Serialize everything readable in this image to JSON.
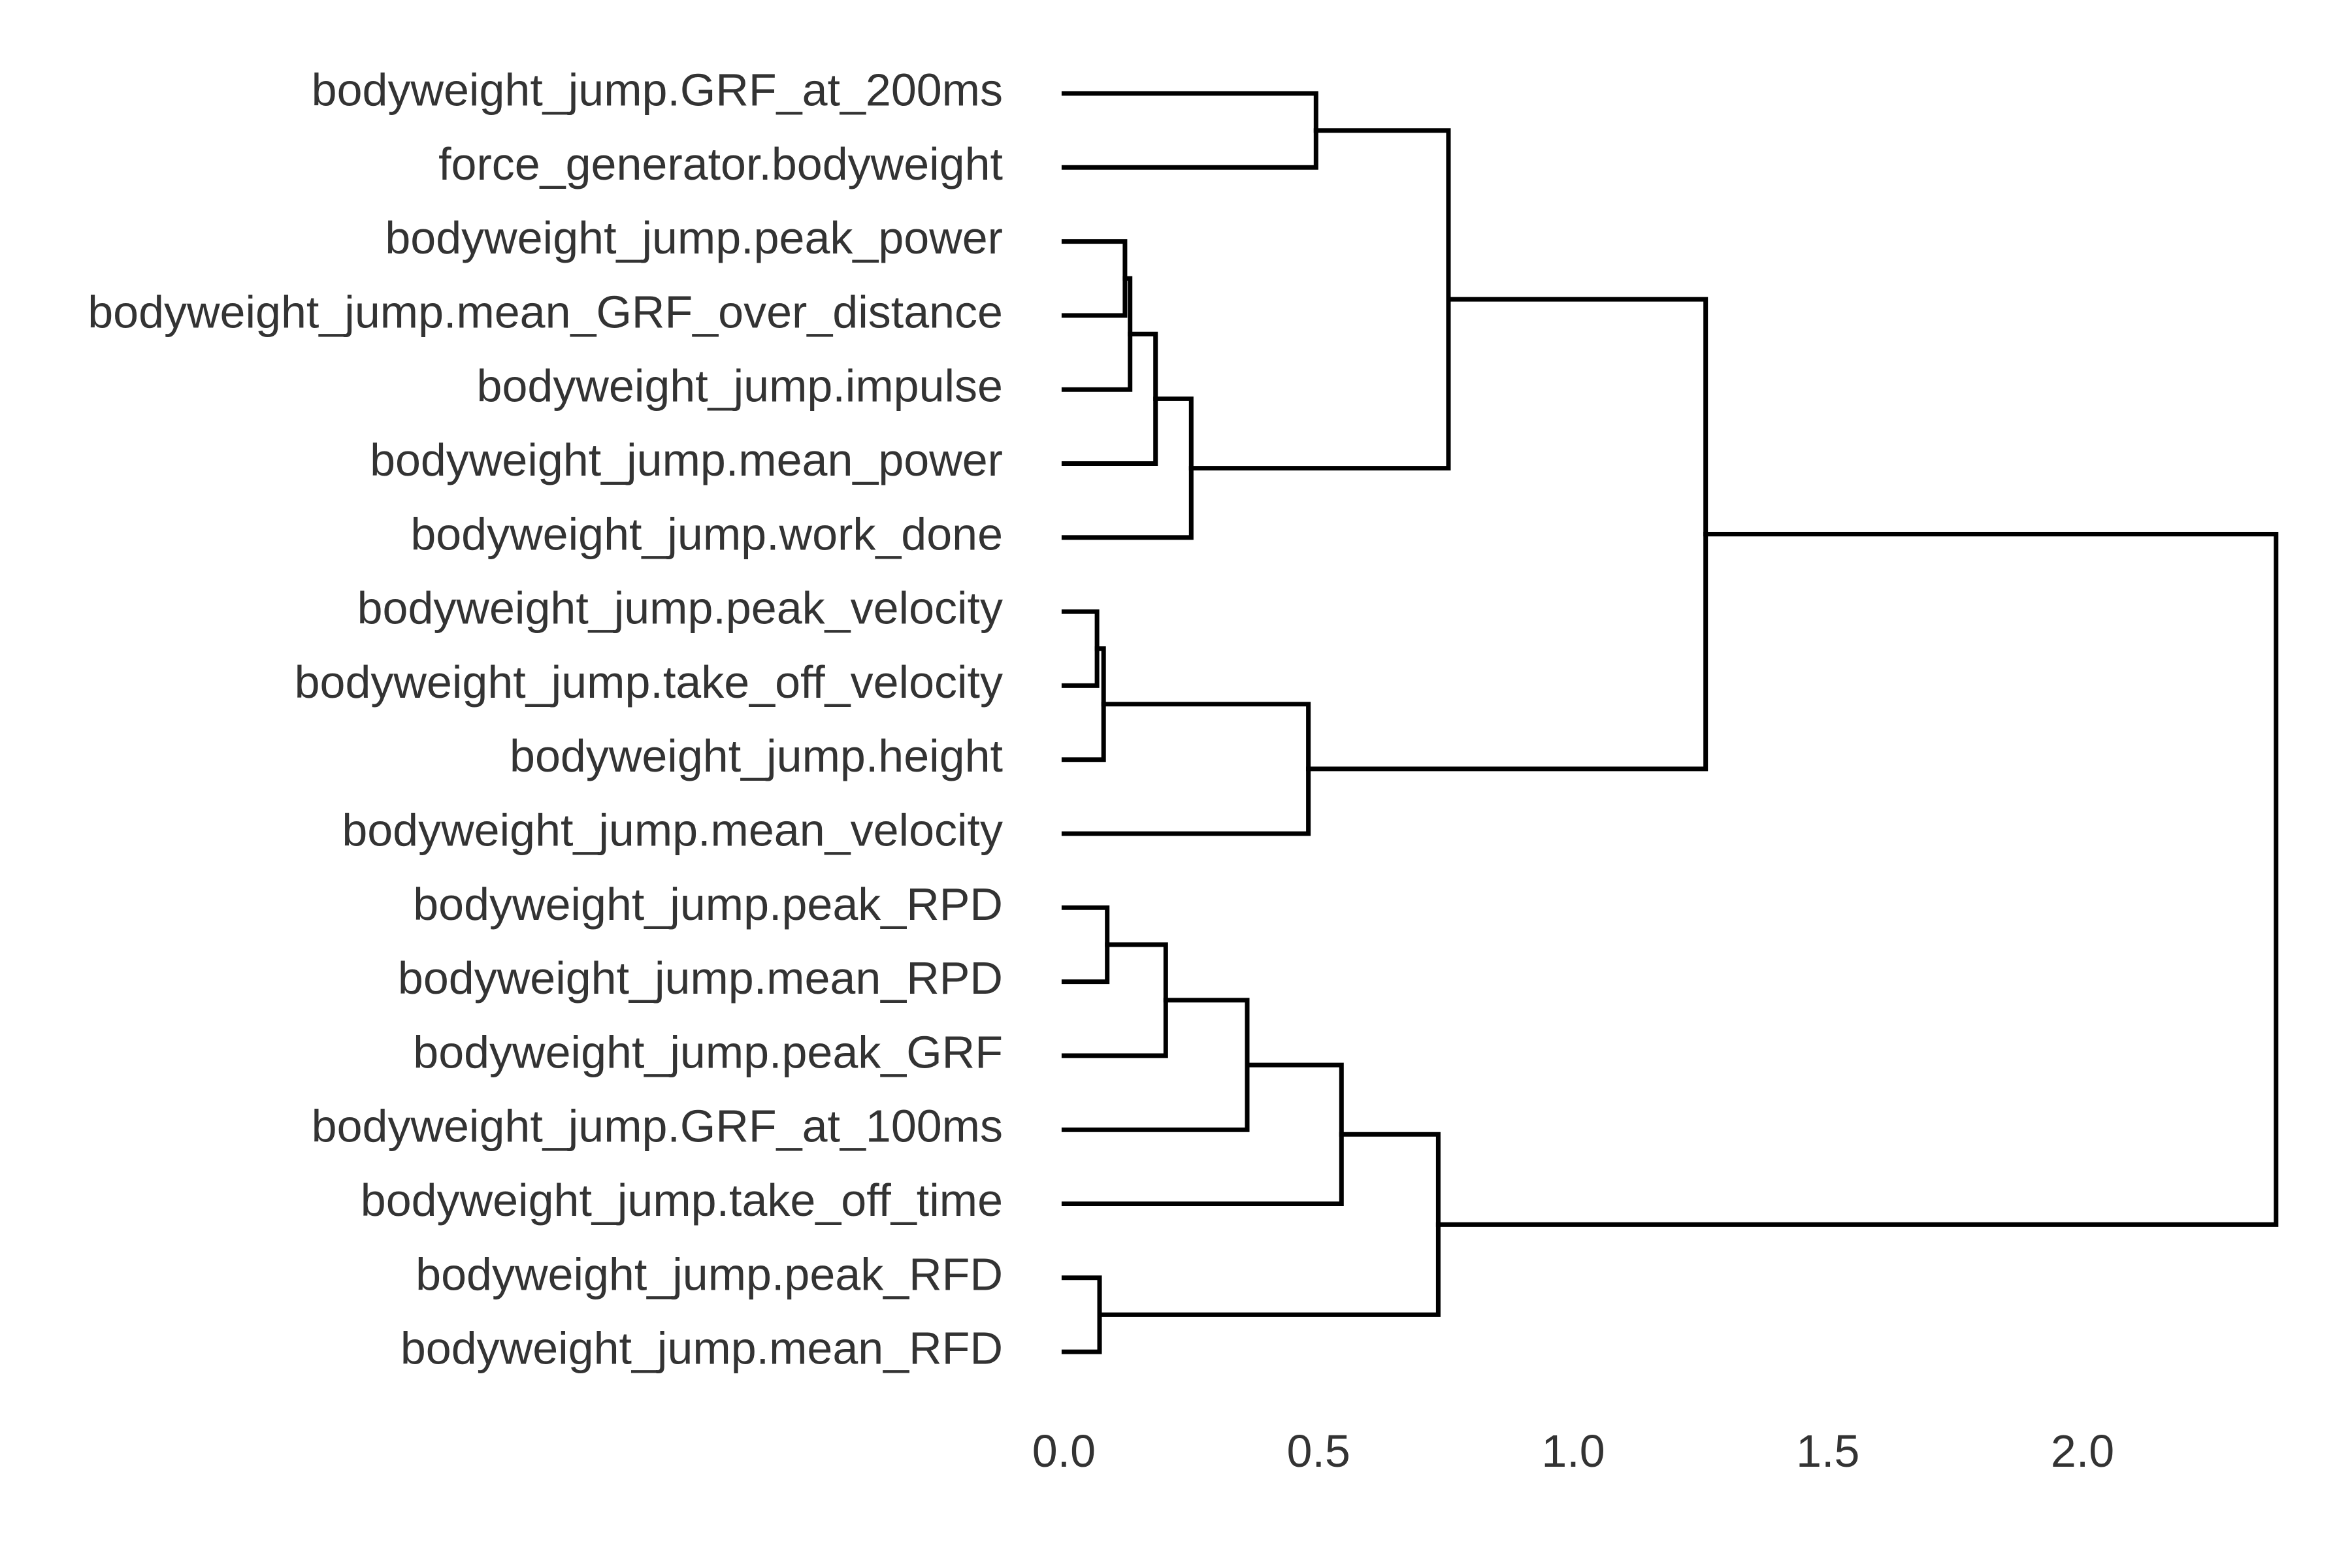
{
  "chart_data": {
    "type": "dendrogram",
    "orientation": "horizontal",
    "leaves": [
      "bodyweight_jump.GRF_at_200ms",
      "force_generator.bodyweight",
      "bodyweight_jump.peak_power",
      "bodyweight_jump.mean_GRF_over_distance",
      "bodyweight_jump.impulse",
      "bodyweight_jump.mean_power",
      "bodyweight_jump.work_done",
      "bodyweight_jump.peak_velocity",
      "bodyweight_jump.take_off_velocity",
      "bodyweight_jump.height",
      "bodyweight_jump.mean_velocity",
      "bodyweight_jump.peak_RPD",
      "bodyweight_jump.mean_RPD",
      "bodyweight_jump.peak_GRF",
      "bodyweight_jump.GRF_at_100ms",
      "bodyweight_jump.take_off_time",
      "bodyweight_jump.peak_RFD",
      "bodyweight_jump.mean_RFD"
    ],
    "merges": [
      {
        "id": "m1",
        "children": [
          "L7",
          "L8"
        ],
        "distance": 0.065
      },
      {
        "id": "m2",
        "children": [
          "L16",
          "L17"
        ],
        "distance": 0.07
      },
      {
        "id": "m3",
        "children": [
          "m1",
          "L9"
        ],
        "distance": 0.078
      },
      {
        "id": "m4",
        "children": [
          "L11",
          "L12"
        ],
        "distance": 0.085
      },
      {
        "id": "m5",
        "children": [
          "L2",
          "L3"
        ],
        "distance": 0.12
      },
      {
        "id": "m6",
        "children": [
          "m5",
          "L4"
        ],
        "distance": 0.13
      },
      {
        "id": "m7",
        "children": [
          "m6",
          "L5"
        ],
        "distance": 0.18
      },
      {
        "id": "m8",
        "children": [
          "m4",
          "L13"
        ],
        "distance": 0.2
      },
      {
        "id": "m9",
        "children": [
          "m7",
          "L6"
        ],
        "distance": 0.25
      },
      {
        "id": "m10",
        "children": [
          "m8",
          "L14"
        ],
        "distance": 0.36
      },
      {
        "id": "m11",
        "children": [
          "m3",
          "L10"
        ],
        "distance": 0.48
      },
      {
        "id": "m12",
        "children": [
          "L0",
          "L1"
        ],
        "distance": 0.495
      },
      {
        "id": "m13",
        "children": [
          "m10",
          "L15"
        ],
        "distance": 0.545
      },
      {
        "id": "m14",
        "children": [
          "m2",
          "m13"
        ],
        "distance": 0.735
      },
      {
        "id": "m15",
        "children": [
          "m12",
          "m9"
        ],
        "distance": 0.755
      },
      {
        "id": "m16",
        "children": [
          "m15",
          "m11"
        ],
        "distance": 1.26
      },
      {
        "id": "m17",
        "children": [
          "m16",
          "m14"
        ],
        "distance": 2.38
      }
    ],
    "xticks": [
      0.0,
      0.5,
      1.0,
      1.5,
      2.0
    ],
    "xtick_labels": [
      "0.0",
      "0.5",
      "1.0",
      "1.5",
      "2.0"
    ],
    "xlim": [
      -0.03,
      2.42
    ],
    "grid": false,
    "link_color": "#000000",
    "text_color": "#333333"
  }
}
